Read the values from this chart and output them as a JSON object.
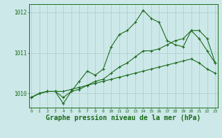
{
  "background_color": "#cce8e8",
  "grid_color": "#aacccc",
  "line_color": "#1a6b1a",
  "title": "Graphe pression niveau de la mer (hPa)",
  "title_fontsize": 7.0,
  "ylabel_values": [
    1010,
    1011,
    1012
  ],
  "xlim": [
    -0.3,
    23.3
  ],
  "ylim": [
    1009.65,
    1012.2
  ],
  "x_ticks": [
    0,
    1,
    2,
    3,
    4,
    5,
    6,
    7,
    8,
    9,
    10,
    11,
    12,
    13,
    14,
    15,
    16,
    17,
    18,
    19,
    20,
    21,
    22,
    23
  ],
  "series1": {
    "x": [
      0,
      1,
      2,
      3,
      4,
      5,
      6,
      7,
      8,
      9,
      10,
      11,
      12,
      13,
      14,
      15,
      16,
      17,
      18,
      19,
      20,
      21,
      22,
      23
    ],
    "y": [
      1009.9,
      1010.0,
      1010.05,
      1010.05,
      1010.05,
      1010.1,
      1010.15,
      1010.2,
      1010.25,
      1010.3,
      1010.35,
      1010.4,
      1010.45,
      1010.5,
      1010.55,
      1010.6,
      1010.65,
      1010.7,
      1010.75,
      1010.8,
      1010.85,
      1010.75,
      1010.6,
      1010.5
    ]
  },
  "series2": {
    "x": [
      0,
      1,
      2,
      3,
      4,
      5,
      6,
      7,
      8,
      9,
      10,
      11,
      12,
      13,
      14,
      15,
      16,
      17,
      18,
      19,
      20,
      21,
      22,
      23
    ],
    "y": [
      1009.9,
      1010.0,
      1010.05,
      1010.05,
      1009.9,
      1010.05,
      1010.1,
      1010.2,
      1010.3,
      1010.35,
      1010.5,
      1010.65,
      1010.75,
      1010.9,
      1011.05,
      1011.05,
      1011.1,
      1011.2,
      1011.3,
      1011.35,
      1011.55,
      1011.35,
      1011.05,
      1010.75
    ]
  },
  "series3": {
    "x": [
      0,
      1,
      2,
      3,
      4,
      5,
      6,
      7,
      8,
      9,
      10,
      11,
      12,
      13,
      14,
      15,
      16,
      17,
      18,
      19,
      20,
      21,
      22,
      23
    ],
    "y": [
      1009.9,
      1010.0,
      1010.05,
      1010.05,
      1009.75,
      1010.05,
      1010.3,
      1010.55,
      1010.45,
      1010.6,
      1011.15,
      1011.45,
      1011.55,
      1011.75,
      1012.05,
      1011.85,
      1011.75,
      1011.3,
      1011.2,
      1011.15,
      1011.55,
      1011.55,
      1011.35,
      1010.75
    ]
  }
}
